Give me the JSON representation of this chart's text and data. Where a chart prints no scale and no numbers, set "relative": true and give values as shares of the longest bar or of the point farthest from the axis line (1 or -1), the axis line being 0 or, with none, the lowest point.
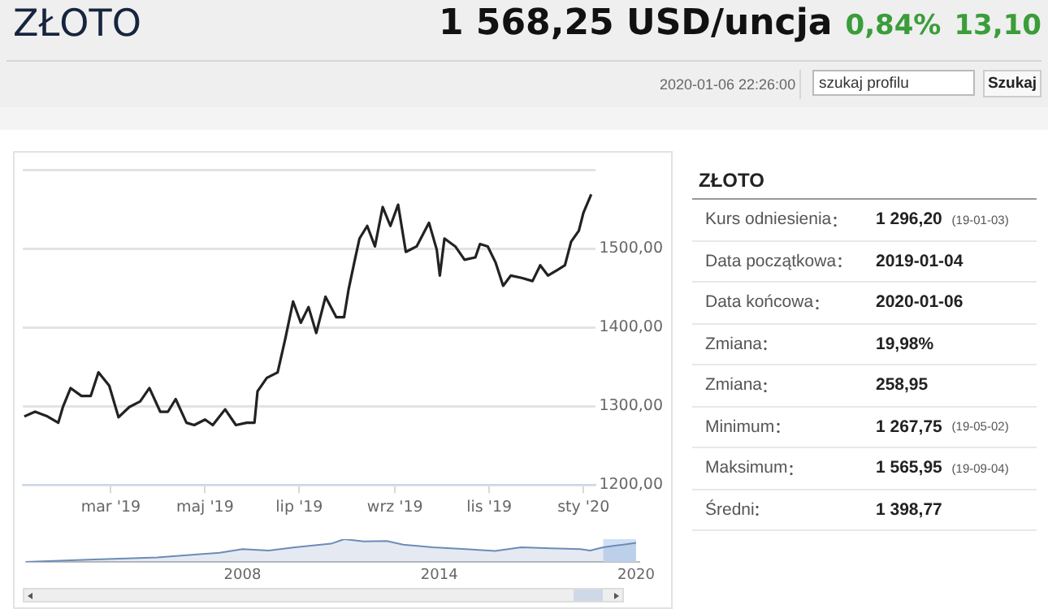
{
  "chart_data": [
    {
      "type": "other",
      "title": "ZŁOTO",
      "annotations": [
        "1 568,25 USD/uncja",
        "0,84%",
        "13,10",
        "2020-01-06 22:26:00",
        "szukaj profilu",
        "Szukaj"
      ]
    },
    {
      "type": "line",
      "x": [
        "2019-01-04",
        "2019-01-11",
        "2019-01-19",
        "2019-01-26",
        "2019-01-29",
        "2019-02-03",
        "2019-02-10",
        "2019-02-16",
        "2019-02-21",
        "2019-02-28",
        "2019-03-06",
        "2019-03-13",
        "2019-03-20",
        "2019-03-26",
        "2019-04-02",
        "2019-04-07",
        "2019-04-12",
        "2019-04-19",
        "2019-04-24",
        "2019-05-01",
        "2019-05-06",
        "2019-05-14",
        "2019-05-21",
        "2019-05-28",
        "2019-06-02",
        "2019-06-04",
        "2019-06-10",
        "2019-06-17",
        "2019-06-22",
        "2019-06-27",
        "2019-07-02",
        "2019-07-07",
        "2019-07-12",
        "2019-07-18",
        "2019-07-25",
        "2019-07-30",
        "2019-08-02",
        "2019-08-06",
        "2019-08-09",
        "2019-08-14",
        "2019-08-19",
        "2019-08-24",
        "2019-08-29",
        "2019-09-03",
        "2019-09-08",
        "2019-09-15",
        "2019-09-23",
        "2019-09-28",
        "2019-09-30",
        "2019-10-03",
        "2019-10-10",
        "2019-10-16",
        "2019-10-23",
        "2019-10-26",
        "2019-10-31",
        "2019-11-05",
        "2019-11-10",
        "2019-11-15",
        "2019-11-22",
        "2019-11-29",
        "2019-12-04",
        "2019-12-09",
        "2019-12-15",
        "2019-12-20",
        "2019-12-24",
        "2019-12-29",
        "2020-01-01",
        "2020-01-06"
      ],
      "series": [
        {
          "color": "#222222",
          "values": [
            1287,
            1293,
            1287,
            1279,
            1299,
            1323,
            1313,
            1313,
            1343,
            1326,
            1286,
            1299,
            1306,
            1323,
            1293,
            1293,
            1309,
            1279,
            1276,
            1283,
            1276,
            1296,
            1276,
            1279,
            1279,
            1319,
            1336,
            1343,
            1386,
            1433,
            1406,
            1426,
            1393,
            1439,
            1413,
            1413,
            1449,
            1486,
            1513,
            1529,
            1503,
            1553,
            1529,
            1556,
            1496,
            1503,
            1533,
            1499,
            1466,
            1513,
            1503,
            1486,
            1489,
            1506,
            1503,
            1483,
            1453,
            1466,
            1463,
            1459,
            1479,
            1466,
            1473,
            1479,
            1509,
            1523,
            1546,
            1569
          ]
        }
      ],
      "xlim": [
        "2019-01-03",
        "2020-01-09"
      ],
      "xticks": [
        {
          "value": "2019-03-01",
          "label": "mar '19"
        },
        {
          "value": "2019-05-01",
          "label": "maj '19"
        },
        {
          "value": "2019-07-01",
          "label": "lip '19"
        },
        {
          "value": "2019-09-01",
          "label": "wrz '19"
        },
        {
          "value": "2019-11-01",
          "label": "lis '19"
        },
        {
          "value": "2020-01-01",
          "label": "sty '20"
        }
      ],
      "ylim": [
        1200,
        1600
      ],
      "yticks": [
        {
          "value": 1200,
          "label": "1200,00"
        },
        {
          "value": 1300,
          "label": "1300,00"
        },
        {
          "value": 1400,
          "label": "1400,00"
        },
        {
          "value": 1500,
          "label": "1500,00"
        },
        {
          "value": 1600,
          "label": null
        }
      ],
      "grid": "y",
      "marker": "none",
      "line_style": "solid"
    },
    {
      "type": "area",
      "relative": true,
      "x": [
        2001.4,
        2003.3,
        2005.4,
        2007.3,
        2008.0,
        2008.8,
        2009.6,
        2010.7,
        2011.1,
        2011.7,
        2012.4,
        2012.9,
        2013.8,
        2014.8,
        2015.7,
        2016.5,
        2017.4,
        2018.3,
        2018.6,
        2019.0,
        2020.0
      ],
      "series": [
        {
          "color": "#6d8bb8",
          "values": [
            0,
            0.1,
            0.2,
            0.4,
            0.56,
            0.5,
            0.64,
            0.8,
            1,
            0.9,
            0.92,
            0.76,
            0.64,
            0.56,
            0.48,
            0.64,
            0.6,
            0.56,
            0.5,
            0.64,
            0.84
          ]
        }
      ],
      "xlim": [
        2001.4,
        2020.1
      ],
      "xticks": [
        2008,
        2014,
        2020
      ],
      "marker": "none",
      "bands": [
        {
          "axis": "x",
          "from": 2019.0,
          "to": 2020.0,
          "color": "#cfe0f5"
        }
      ]
    },
    {
      "type": "other",
      "title": "ZŁOTO",
      "categories": [
        "Kurs odniesienia",
        "Data początkowa",
        "Data końcowa",
        "Zmiana",
        "Zmiana",
        "Minimum",
        "Maksimum",
        "Średni"
      ],
      "value_labels": [
        "1 296,20 (19-01-03)",
        "2019-01-04",
        "2020-01-06",
        "19,98%",
        "258,95",
        "1 267,75 (19-05-02)",
        "1 565,95 (19-09-04)",
        "1 398,77"
      ]
    }
  ]
}
